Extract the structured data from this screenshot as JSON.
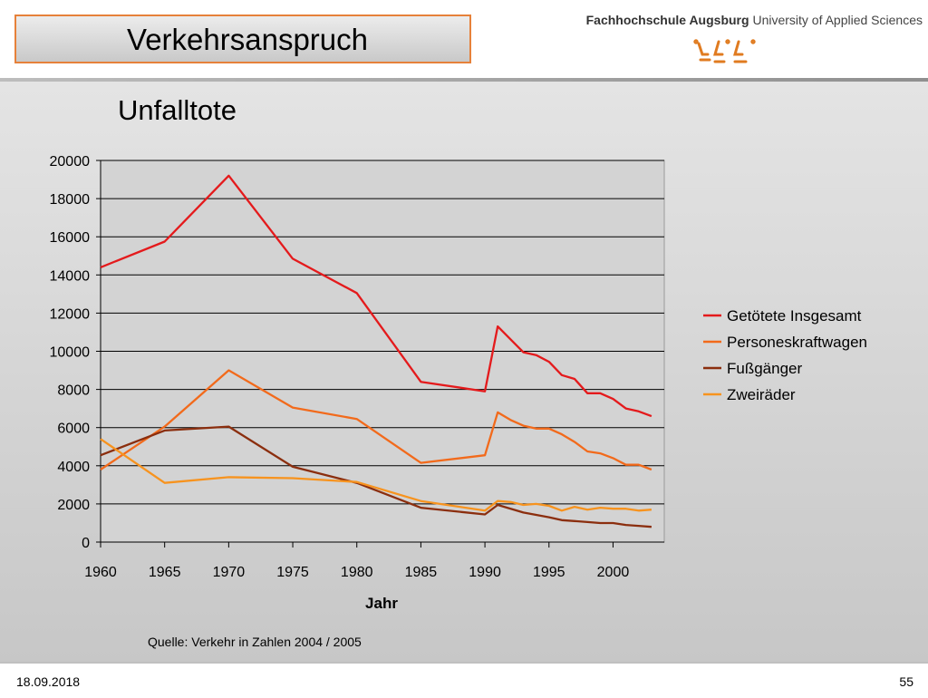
{
  "slide": {
    "title": "Verkehrsanspruch",
    "subtitle": "Unfalltote",
    "school_bold": "Fachhochschule Augsburg",
    "school_rest": "University of Applied Sciences",
    "source": "Quelle: Verkehr in Zahlen 2004 / 2005",
    "date": "18.09.2018",
    "page_number": "55"
  },
  "logo": {
    "icon": "fh-augsburg-logo-icon",
    "color": "#e07b20"
  },
  "chart_data": {
    "type": "line",
    "title": "",
    "xlabel": "Jahr",
    "ylabel": "",
    "xlim": [
      1960,
      2004
    ],
    "ylim": [
      0,
      20000
    ],
    "x_ticks": [
      1960,
      1965,
      1970,
      1975,
      1980,
      1985,
      1990,
      1995,
      2000
    ],
    "y_ticks": [
      0,
      2000,
      4000,
      6000,
      8000,
      10000,
      12000,
      14000,
      16000,
      18000,
      20000
    ],
    "grid": "horizontal",
    "legend": "right",
    "series": [
      {
        "name": "Getötete Insgesamt",
        "color": "#e41a1c",
        "x": [
          1960,
          1965,
          1970,
          1975,
          1980,
          1985,
          1990,
          1991,
          1993,
          1994,
          1995,
          1996,
          1997,
          1998,
          1999,
          2000,
          2001,
          2002,
          2003
        ],
        "y": [
          14400,
          15750,
          19200,
          14850,
          13050,
          8400,
          7900,
          11300,
          9950,
          9800,
          9450,
          8750,
          8550,
          7800,
          7800,
          7500,
          7000,
          6850,
          6600
        ]
      },
      {
        "name": "Personeskraftwagen",
        "color": "#f26a1b",
        "x": [
          1960,
          1965,
          1970,
          1975,
          1980,
          1985,
          1990,
          1991,
          1992,
          1993,
          1994,
          1995,
          1996,
          1997,
          1998,
          1999,
          2000,
          2001,
          2002,
          2003
        ],
        "y": [
          3800,
          6050,
          9000,
          7050,
          6450,
          4150,
          4550,
          6800,
          6400,
          6100,
          5950,
          5950,
          5650,
          5250,
          4750,
          4650,
          4400,
          4050,
          4050,
          3800
        ]
      },
      {
        "name": "Fußgänger",
        "color": "#8b2e0e",
        "x": [
          1960,
          1965,
          1970,
          1975,
          1980,
          1985,
          1990,
          1991,
          1993,
          1995,
          1996,
          1997,
          1998,
          1999,
          2000,
          2001,
          2002,
          2003
        ],
        "y": [
          4550,
          5850,
          6050,
          3950,
          3100,
          1800,
          1450,
          1950,
          1550,
          1300,
          1150,
          1100,
          1050,
          1000,
          1000,
          900,
          850,
          800
        ]
      },
      {
        "name": "Zweiräder",
        "color": "#f7931e",
        "x": [
          1960,
          1965,
          1970,
          1975,
          1980,
          1985,
          1990,
          1991,
          1992,
          1993,
          1994,
          1995,
          1996,
          1997,
          1998,
          1999,
          2000,
          2001,
          2002,
          2003
        ],
        "y": [
          5400,
          3100,
          3400,
          3350,
          3150,
          2150,
          1650,
          2150,
          2100,
          1950,
          2000,
          1900,
          1650,
          1850,
          1700,
          1800,
          1750,
          1750,
          1650,
          1700
        ]
      }
    ]
  }
}
